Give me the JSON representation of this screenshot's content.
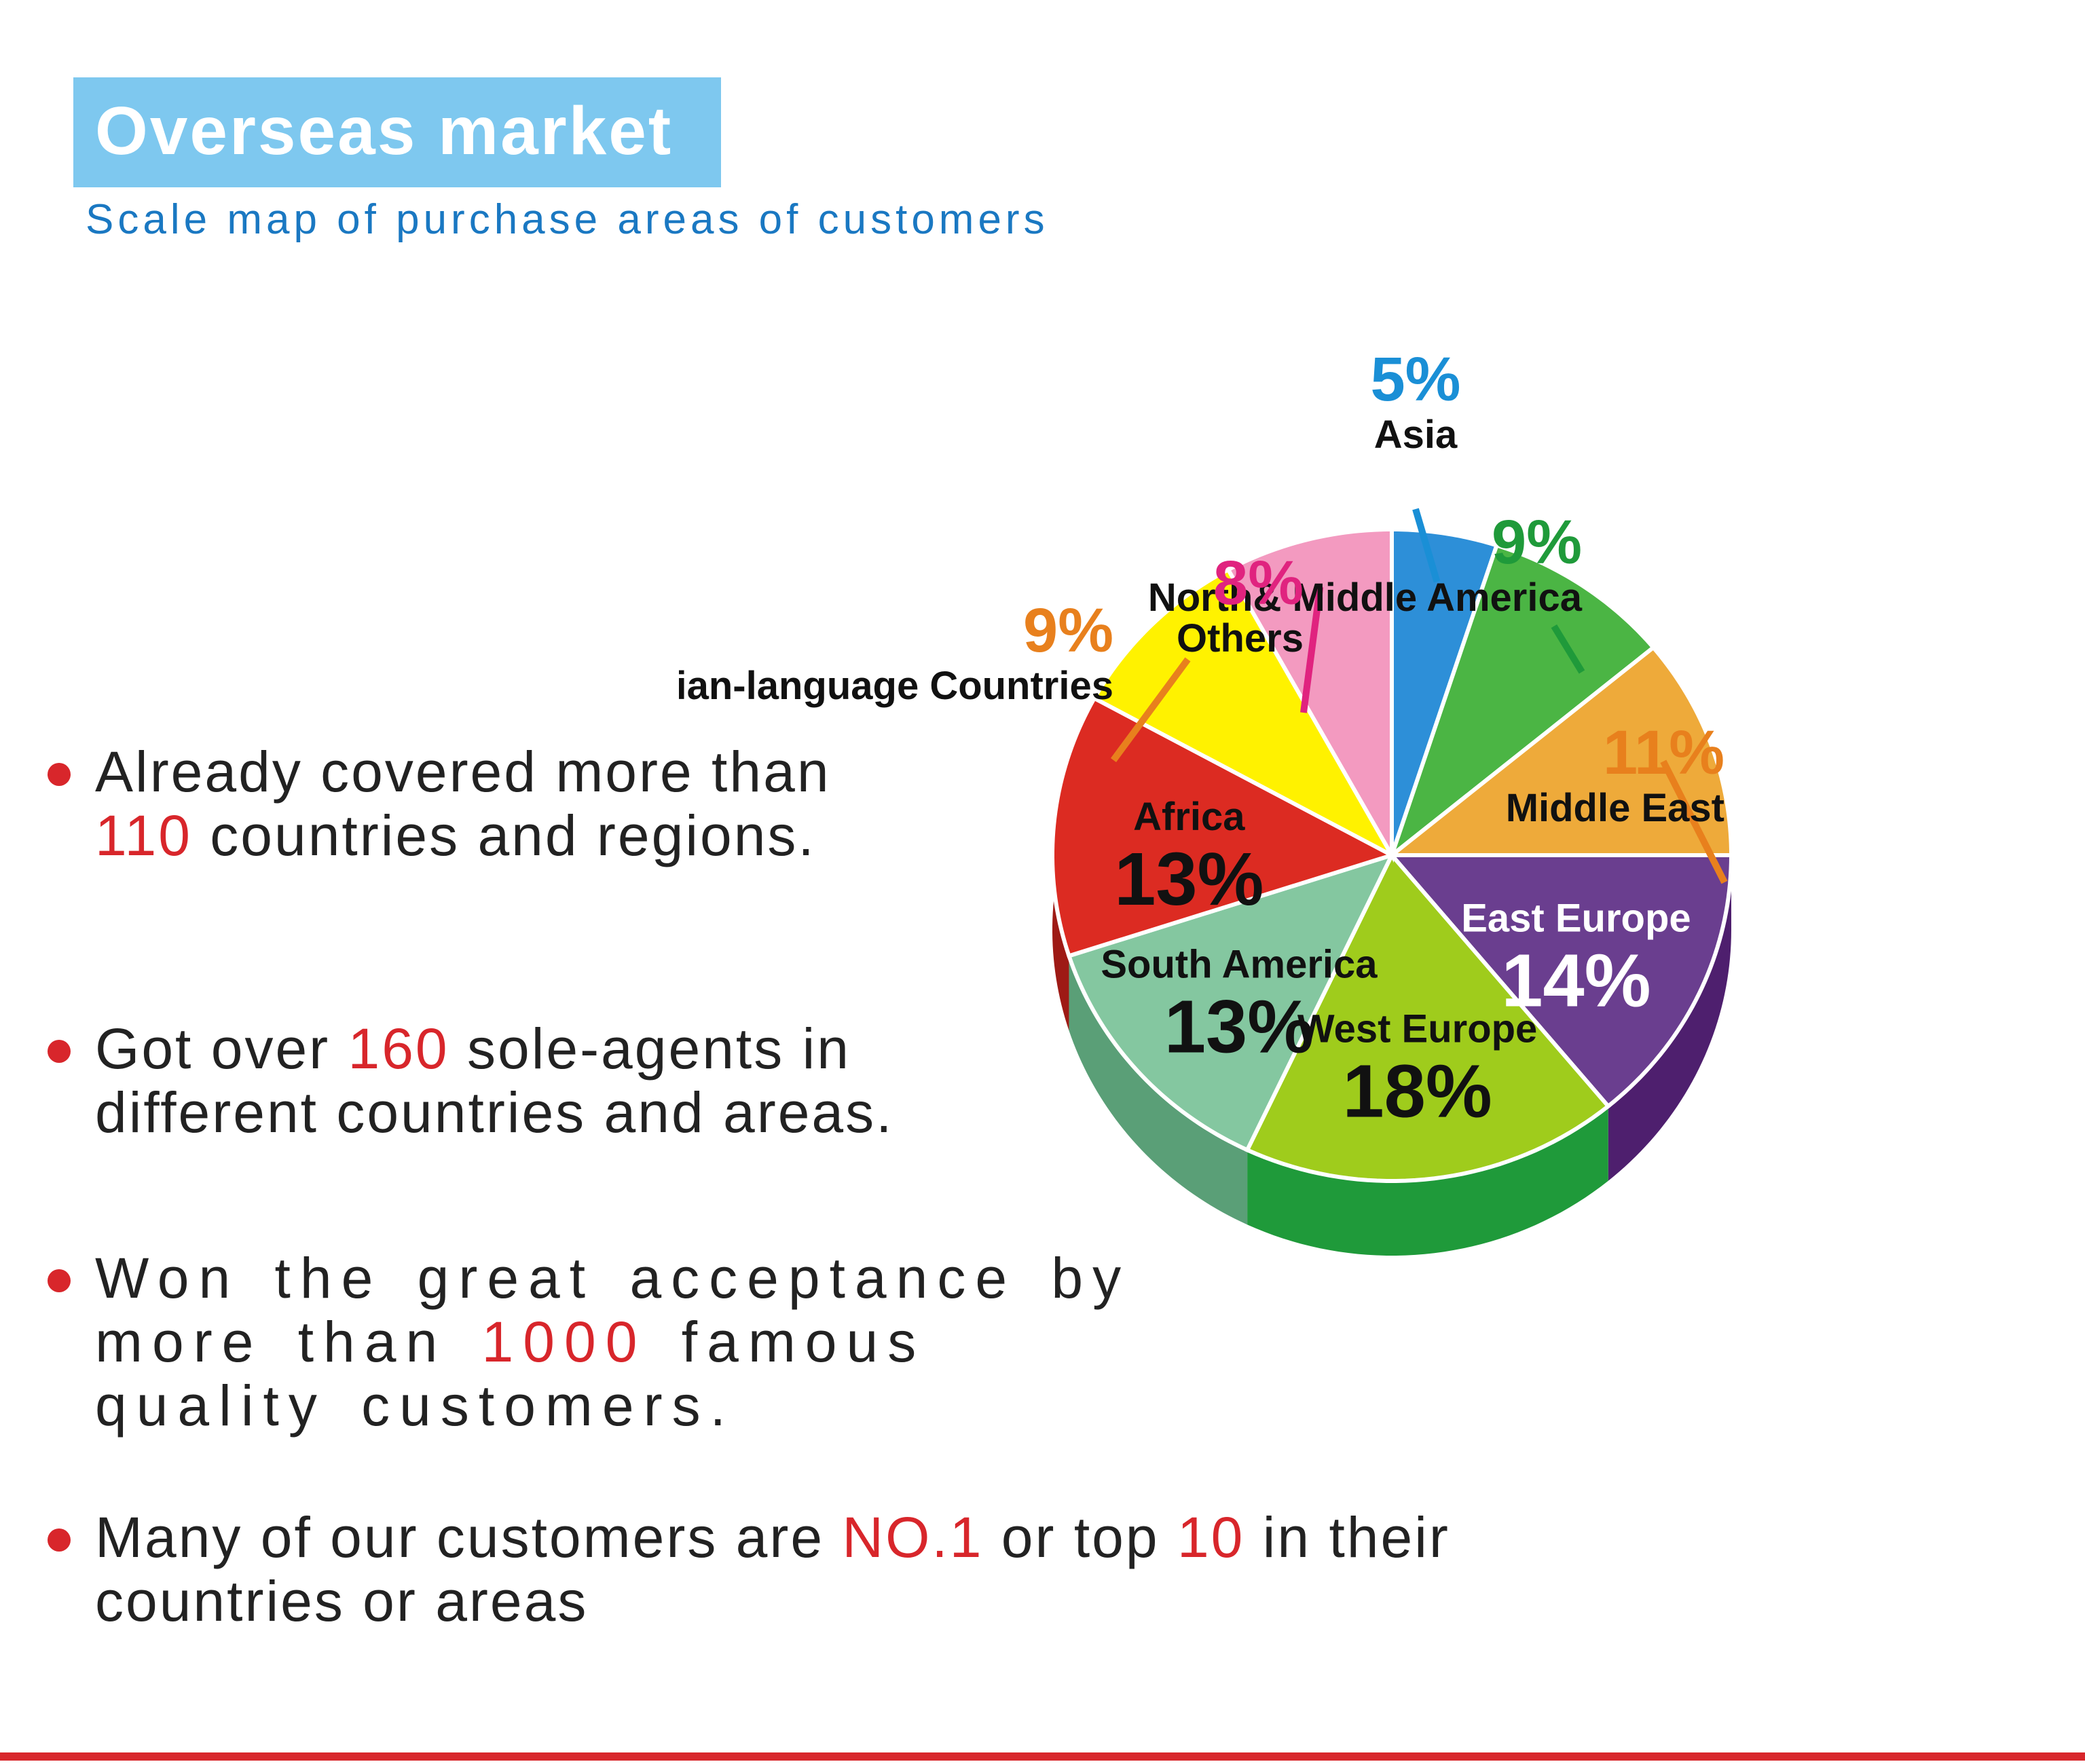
{
  "header": {
    "title": "Overseas market",
    "subtitle": "Scale map of purchase areas of customers"
  },
  "bullets": [
    {
      "lines": [
        [
          {
            "t": "Already covered more than"
          }
        ],
        [
          {
            "t": "110",
            "h": true
          },
          {
            "t": " countries and regions."
          }
        ]
      ]
    },
    {
      "lines": [
        [
          {
            "t": "Got over "
          },
          {
            "t": "160",
            "h": true
          },
          {
            "t": " sole-agents in"
          }
        ],
        [
          {
            "t": "different countries and areas."
          }
        ]
      ]
    },
    {
      "lines": [
        [
          {
            "t": "Won the great acceptance by"
          }
        ],
        [
          {
            "t": "more than "
          },
          {
            "t": "1000",
            "h": true
          },
          {
            "t": " famous"
          }
        ],
        [
          {
            "t": "quality customers."
          }
        ]
      ]
    },
    {
      "lines": [
        [
          {
            "t": "Many of our customers are "
          },
          {
            "t": "NO.1",
            "h": true
          },
          {
            "t": " or top "
          },
          {
            "t": "10",
            "h": true
          },
          {
            "t": " in their"
          }
        ],
        [
          {
            "t": "countries or areas"
          }
        ]
      ]
    }
  ],
  "colors": {
    "accent_red": "#d8262b",
    "title_bg": "#7ec8ef",
    "subtitle_blue": "#1a78c2"
  },
  "chart_data": {
    "type": "pie",
    "title": "",
    "unit": "%",
    "slices": [
      {
        "label": "Asia",
        "value": 5,
        "value_label": "5%",
        "color": "#2d8fd8",
        "side": "#1f6db0",
        "label_color": "#1a8fd6"
      },
      {
        "label": "North& Middle America",
        "value": 9,
        "value_label": "9%",
        "color": "#4bb544",
        "side": "#2f8a2c",
        "label_color": "#1f9a3a"
      },
      {
        "label": "Middle East",
        "value": 11,
        "value_label": "11%",
        "color": "#eeaa3a",
        "side": "#d07f1e",
        "label_color": "#e8801d"
      },
      {
        "label": "East Europe",
        "value": 14,
        "value_label": "14%",
        "color": "#6a3e8f",
        "side": "#4e1f6e",
        "label_color": "#ffffff"
      },
      {
        "label": "West Europe",
        "value": 18,
        "value_label": "18%",
        "color": "#9fcc1c",
        "side": "#1f9a3a",
        "label_color": "#111111"
      },
      {
        "label": "South America",
        "value": 13,
        "value_label": "13%",
        "color": "#84c7a0",
        "side": "#5a9f77",
        "label_color": "#111111"
      },
      {
        "label": "Africa",
        "value": 13,
        "value_label": "13%",
        "color": "#dc2b22",
        "side": "#9e1a15",
        "label_color": "#111111"
      },
      {
        "label": "Russian-language Countries",
        "value": 9,
        "value_label": "9%",
        "color": "#fff200",
        "side": "#c9b800",
        "label_color": "#e8801d"
      },
      {
        "label": "Others",
        "value": 8,
        "value_label": "8%",
        "color": "#f39ac0",
        "side": "#d4307a",
        "label_color": "#e0237f"
      }
    ],
    "legend": "none",
    "grid": false
  }
}
